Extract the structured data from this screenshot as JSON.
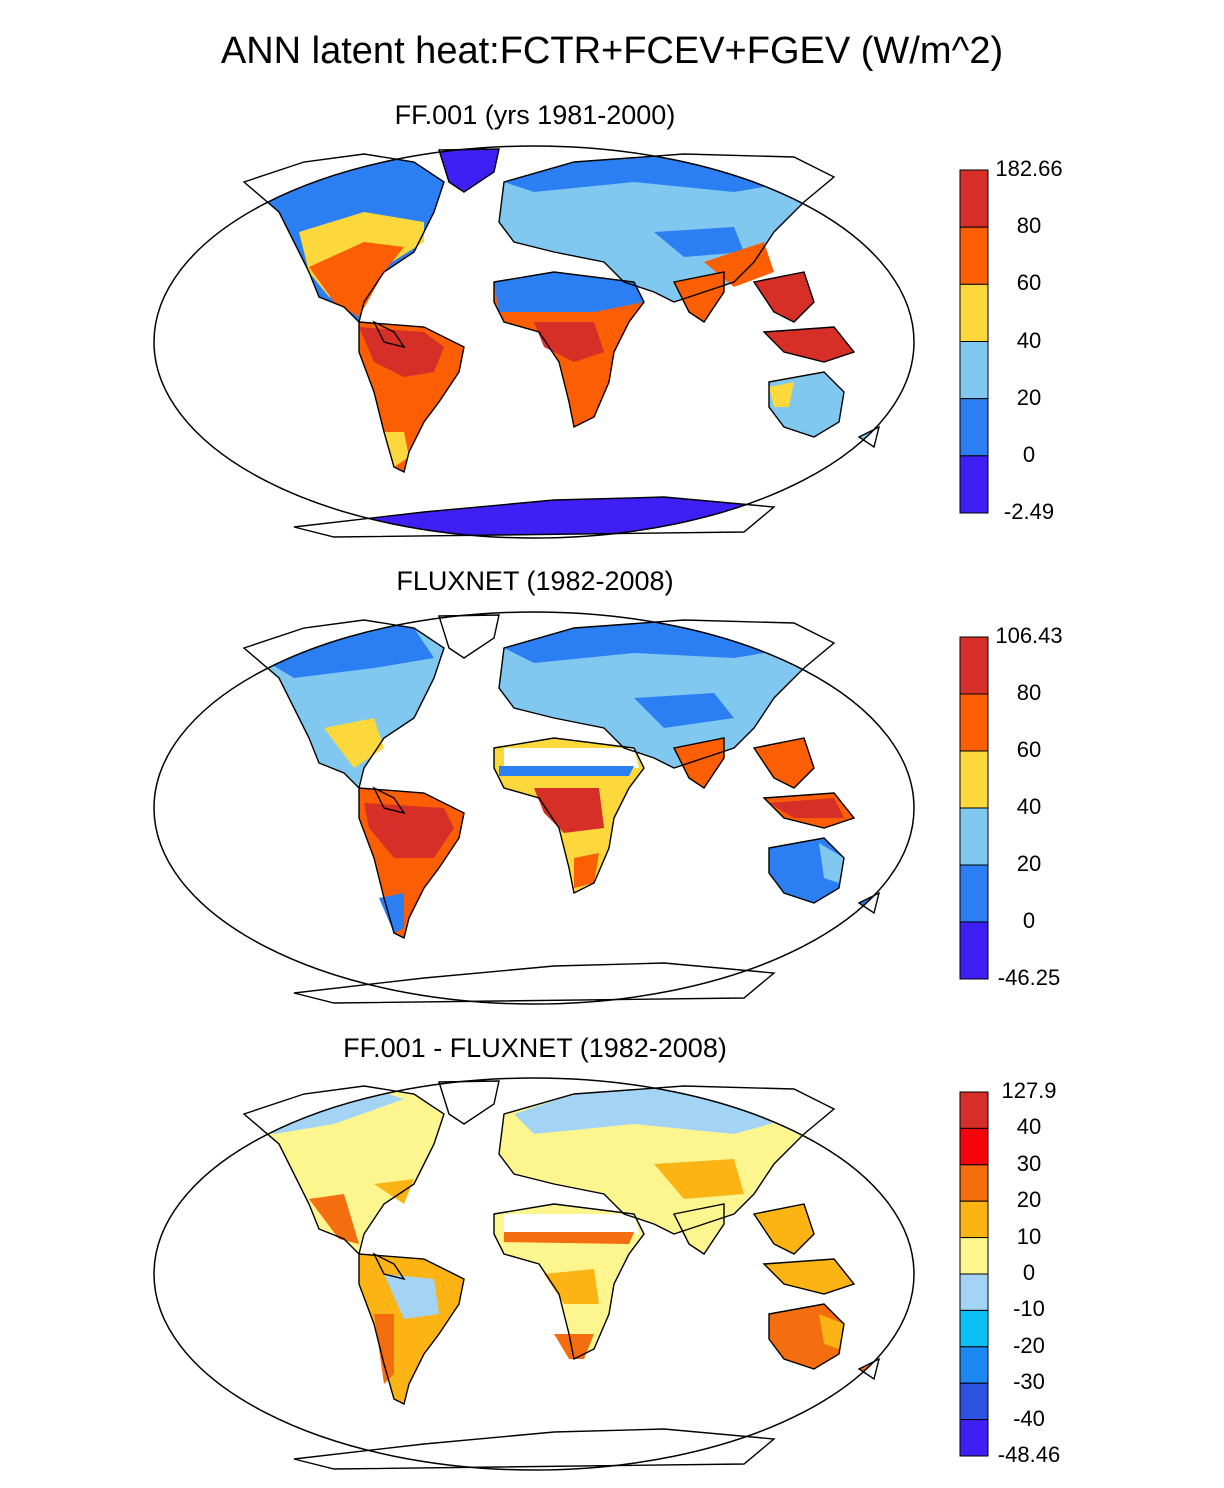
{
  "title": "ANN latent heat:FCTR+FCEV+FGEV (W/m^2)",
  "panels": [
    {
      "title": "FF.001 (yrs 1981-2000)",
      "colorbar": {
        "labels": [
          "182.66",
          "80",
          "60",
          "40",
          "20",
          "0",
          "-2.49"
        ],
        "colors": [
          "#d62f27",
          "#fc5e03",
          "#fdd83c",
          "#80c8f0",
          "#2c7ef3",
          "#3f1ff4"
        ]
      }
    },
    {
      "title": "FLUXNET (1982-2008)",
      "colorbar": {
        "labels": [
          "106.43",
          "80",
          "60",
          "40",
          "20",
          "0",
          "-46.25"
        ],
        "colors": [
          "#d62f27",
          "#fc5e03",
          "#fdd83c",
          "#80c8f0",
          "#2c7ef3",
          "#3f1ff4"
        ]
      }
    },
    {
      "title": "FF.001 - FLUXNET (1982-2008)",
      "colorbar": {
        "labels": [
          "127.9",
          "40",
          "30",
          "20",
          "10",
          "0",
          "-10",
          "-20",
          "-30",
          "-40",
          "-48.46"
        ],
        "colors": [
          "#d62f27",
          "#f5050b",
          "#f46d0e",
          "#fbb413",
          "#fdf68f",
          "#a4d4f5",
          "#0cc0f3",
          "#1e88f2",
          "#2a54e0",
          "#3f1ff4"
        ]
      }
    }
  ]
}
